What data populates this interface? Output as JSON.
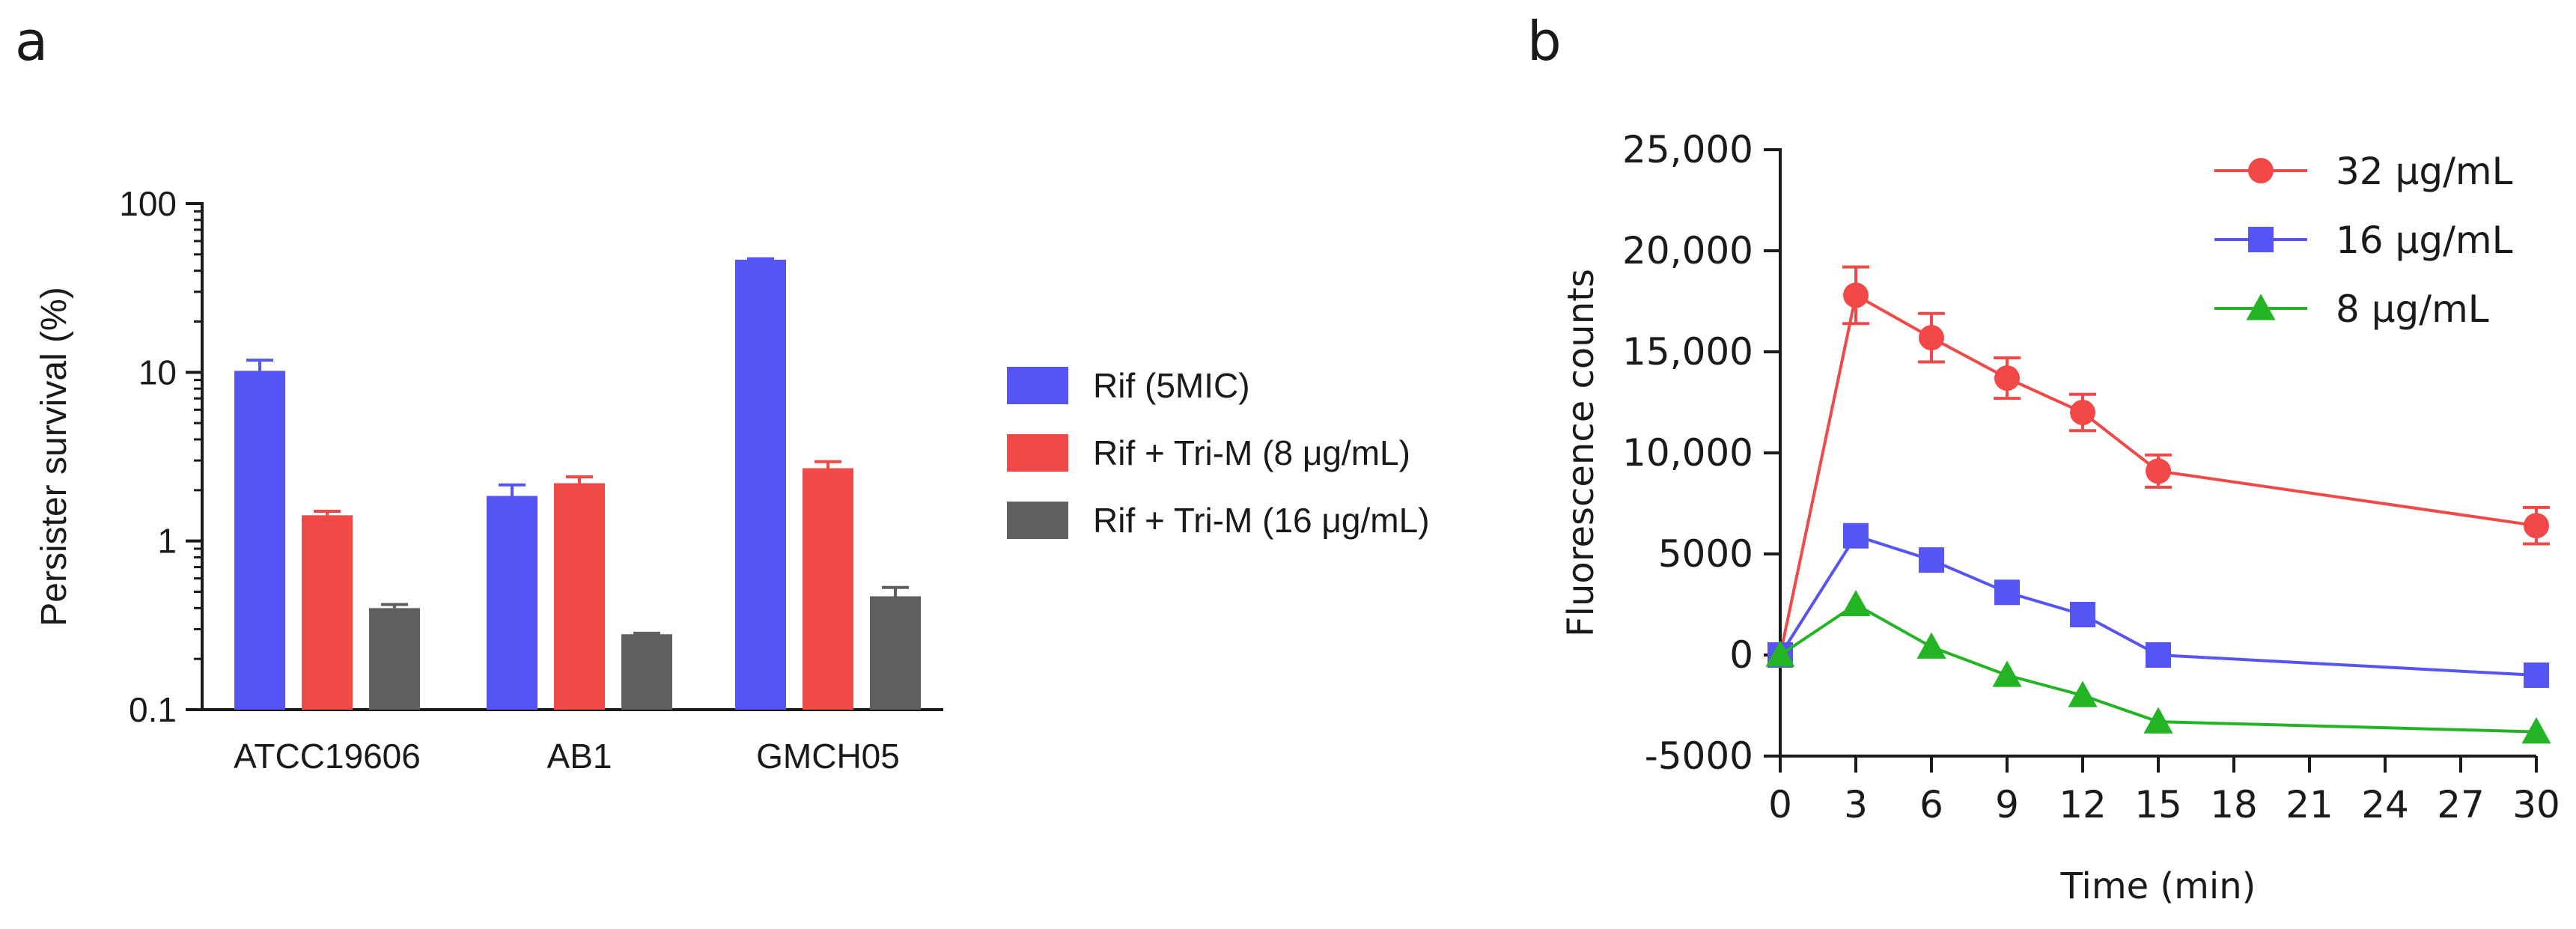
{
  "colors": {
    "axis": "#1a1a1a",
    "blue": "#5555f5",
    "red": "#f24848",
    "gray": "#5f5f5f",
    "green": "#22b422",
    "background": "#ffffff"
  },
  "panel_a_label": "a",
  "panel_b_label": "b",
  "chart_data": [
    {
      "type": "bar",
      "panel": "a",
      "scale": "log",
      "ylabel": "Persister survival (%)",
      "xlabel": "",
      "ylim": [
        0.1,
        100
      ],
      "yticks": [
        0.1,
        1,
        10,
        100
      ],
      "ytick_labels": [
        "0.1",
        "1",
        "10",
        "100"
      ],
      "categories": [
        "ATCC19606",
        "AB1",
        "GMCH05"
      ],
      "legend_position": "right",
      "series": [
        {
          "name": "Rif (5MIC)",
          "color": "#5555f5",
          "values": [
            10.2,
            1.85,
            46.5
          ],
          "errors": [
            1.6,
            0.3,
            0.6
          ]
        },
        {
          "name": "Rif + Tri-M (8 μg/mL)",
          "color": "#f24848",
          "values": [
            1.42,
            2.2,
            2.7
          ],
          "errors": [
            0.08,
            0.2,
            0.25
          ]
        },
        {
          "name": "Rif + Tri-M (16 μg/mL)",
          "color": "#5f5f5f",
          "values": [
            0.4,
            0.28,
            0.47
          ],
          "errors": [
            0.02,
            0.004,
            0.06
          ]
        }
      ]
    },
    {
      "type": "line",
      "panel": "b",
      "xlabel": "Time (min)",
      "ylabel": "Fluorescence counts",
      "xlim": [
        0,
        30
      ],
      "ylim": [
        -5000,
        25000
      ],
      "xticks": [
        0,
        3,
        6,
        9,
        12,
        15,
        18,
        21,
        24,
        27,
        30
      ],
      "xtick_labels": [
        "0",
        "3",
        "6",
        "9",
        "12",
        "15",
        "18",
        "21",
        "24",
        "27",
        "30"
      ],
      "yticks": [
        -5000,
        0,
        5000,
        10000,
        15000,
        20000,
        25000
      ],
      "ytick_labels": [
        "-5000",
        "0",
        "5000",
        "10,000",
        "15,000",
        "20,000",
        "25,000"
      ],
      "legend_position": "top-right",
      "x": [
        0,
        3,
        6,
        9,
        12,
        15,
        30
      ],
      "series": [
        {
          "name": "32 μg/mL",
          "color": "#f24848",
          "marker": "circle",
          "values": [
            0,
            17800,
            15700,
            13700,
            12000,
            9100,
            6400
          ],
          "errors": [
            0,
            1400,
            1200,
            1000,
            900,
            800,
            900
          ]
        },
        {
          "name": "16 μg/mL",
          "color": "#5555f5",
          "marker": "square",
          "values": [
            0,
            5900,
            4700,
            3100,
            2000,
            0,
            -1000
          ],
          "errors": [
            0,
            0,
            0,
            0,
            0,
            0,
            0
          ]
        },
        {
          "name": "8 μg/mL",
          "color": "#22b422",
          "marker": "triangle",
          "values": [
            0,
            2500,
            400,
            -1000,
            -2000,
            -3300,
            -3800
          ],
          "errors": [
            0,
            0,
            0,
            0,
            0,
            0,
            0
          ]
        }
      ]
    }
  ]
}
